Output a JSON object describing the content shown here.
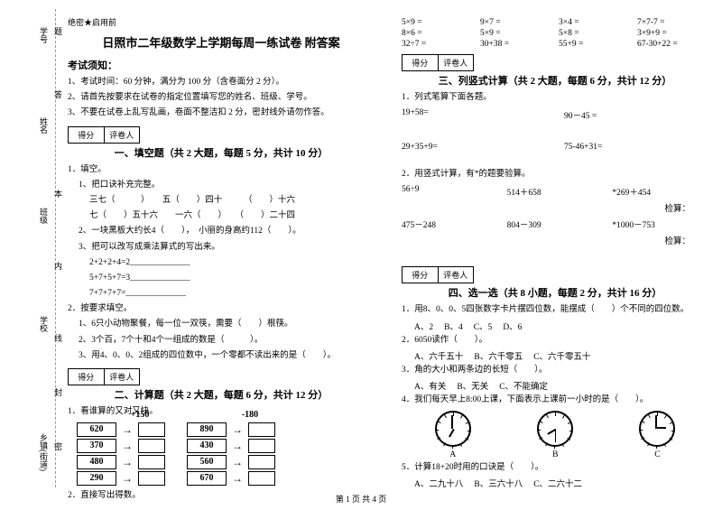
{
  "binding": {
    "labels": [
      "学号",
      "姓名",
      "班级",
      "学校",
      "乡镇(街道)"
    ],
    "sideText": [
      "题",
      "答",
      "本",
      "内",
      "线",
      "封",
      "密"
    ]
  },
  "secret": "绝密★启用前",
  "title": "日照市二年级数学上学期每周一练试卷 附答案",
  "notesHead": "考试须知：",
  "notes": [
    "1、考试时间：60 分钟，满分为 100 分（含卷面分 2 分）。",
    "2、请首先按要求在试卷的指定位置填写您的姓名、班级、学号。",
    "3、不要在试卷上乱写乱画，卷面不整洁扣 2 分，密封线外请勿作答。"
  ],
  "score": {
    "c1": "得分",
    "c2": "评卷人"
  },
  "s1": {
    "title": "一、填空题（共 2 大题，每题 5 分，共计 10 分）",
    "q1": "1．填空。",
    "q1a": "1、把口诀补充完整。",
    "q1aLines": [
      "三七（　　　）　　五（　　）四十　　　（　　）十六",
      "七（　　）五十六　　一六（　　）　　（　　）二十四"
    ],
    "q1b": "2、一块黑板大约长4（　　），　小丽的身高约112（　　）。",
    "q1c": "3、把可以改写成乘法算式的写出来。",
    "q1cLines": [
      "2+2+2+4=2______________",
      "5+7+5+7=3______________",
      "7+7+7+7=______________"
    ],
    "q2": "2．按要求填空。",
    "q2Lines": [
      "1、6只小动物聚餐，每一位一双筷，需要（　　）根筷。",
      "2、3个百，7个十和4个一组成的数是（　　　）。",
      "3、用4、0、0、2组成的四位数中，一个零都不读出来的是（　　）。"
    ]
  },
  "s2": {
    "title": "二、计算题（共 2 大题，每题 6 分，共计 12 分）",
    "q1": "1．看谁算的又对又快。",
    "op1": "+150",
    "op2": "-180",
    "left": [
      "620",
      "370",
      "480",
      "290"
    ],
    "mid": [
      "890",
      "430",
      "560",
      "670"
    ],
    "q2": "2．直接写出得数。"
  },
  "calc": {
    "rows": [
      [
        "5×9 =",
        "9×7 =",
        "3×4 =",
        "7×7-7 ="
      ],
      [
        "8×6 =",
        "5×9 =",
        "5×8 =",
        "3×9+9 ="
      ],
      [
        "32÷7 =",
        "30+38 =",
        "55+9 =",
        "67-30+22 ="
      ]
    ]
  },
  "s3": {
    "title": "三、列竖式计算（共 2 大题，每题 6 分，共计 12 分）",
    "q1": "1．列式笔算下面各题。",
    "q1Lines": [
      [
        "19+58=",
        "90－45 ="
      ],
      [
        "29+35+9=",
        "75-46+31="
      ]
    ],
    "q2": "2．用竖式计算，有*的题要验算。",
    "q2Lines": [
      [
        "56÷9",
        "514＋658",
        "*269＋454"
      ],
      [
        "475－248",
        "804－309",
        "*1000－753"
      ]
    ],
    "check": "检算："
  },
  "s4": {
    "title": "四、选一选（共 8 小题，每题 2 分，共计 16 分）",
    "q1": "1．用8、0、0、5四张数字卡片摆四位数，能摆成（　　）个不同的四位数。",
    "q1opts": [
      "A、2",
      "B、4",
      "C、5",
      "D、6"
    ],
    "q2": "2．6050读作（　　）。",
    "q2opts": [
      "A、六千五十",
      "B、六千零五",
      "C、六千零五十"
    ],
    "q3": "3．角的大小和两条边的长短（　　）。",
    "q3opts": [
      "A、有关",
      "B、无关",
      "C、不能确定"
    ],
    "q4": "4．我们每天早上8:00上课，下面表示上课前一小时的是（　　）。",
    "clockLabels": [
      "A",
      "B",
      "C"
    ],
    "q5": "5．计算18+20时用的口诀是（　　）。",
    "q5opts": [
      "A、二九十八",
      "B、三六十八",
      "C、二六十二"
    ]
  },
  "footer": "第 1 页 共 4 页"
}
